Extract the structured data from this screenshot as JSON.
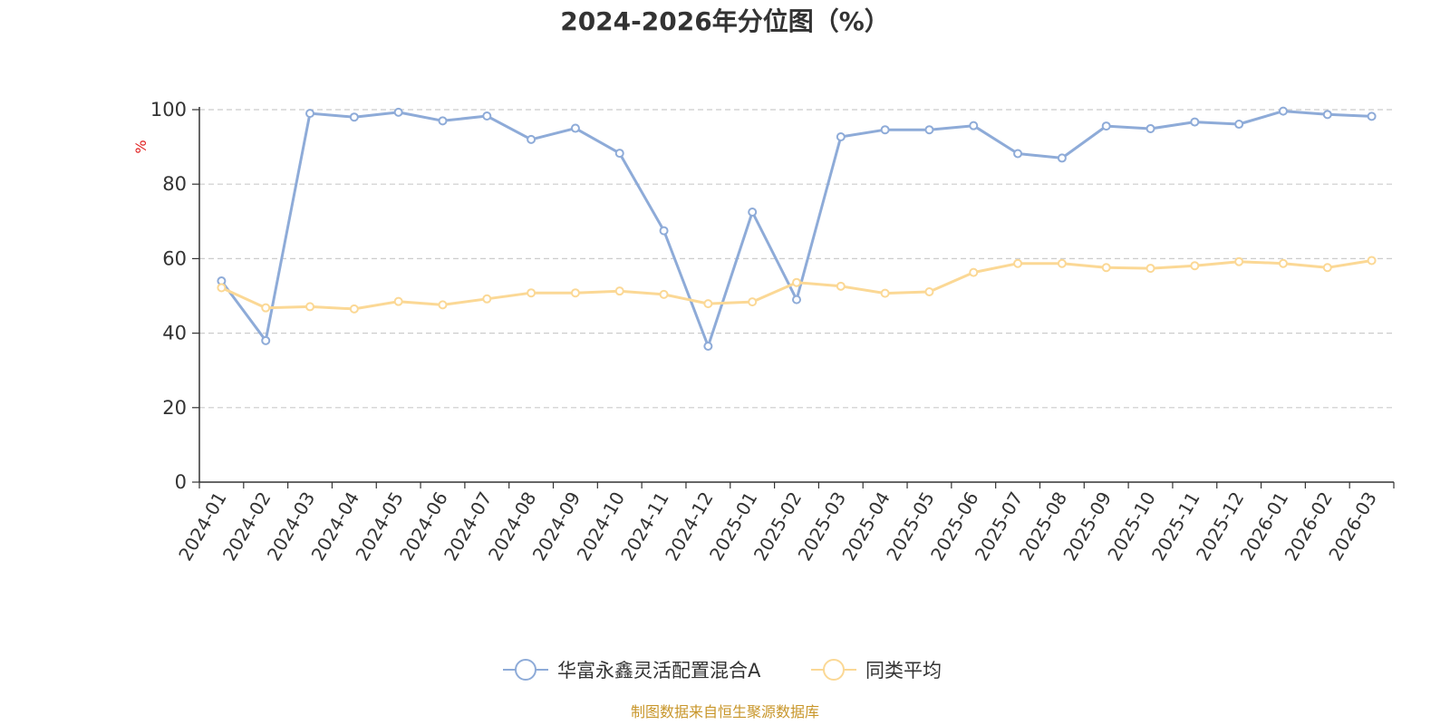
{
  "chart_data": {
    "type": "line",
    "title": "2024-2026年分位图（%）",
    "ylabel": "%",
    "ylim": [
      0,
      100
    ],
    "yticks": [
      0,
      20,
      40,
      60,
      80,
      100
    ],
    "grid": true,
    "legend_position": "bottom-center",
    "categories": [
      "2024-01",
      "2024-02",
      "2024-03",
      "2024-04",
      "2024-05",
      "2024-06",
      "2024-07",
      "2024-08",
      "2024-09",
      "2024-10",
      "2024-11",
      "2024-12",
      "2025-01",
      "2025-02",
      "2025-03",
      "2025-04",
      "2025-05",
      "2025-06",
      "2025-07",
      "2025-08",
      "2025-09",
      "2025-10",
      "2025-11",
      "2025-12",
      "2026-01",
      "2026-02",
      "2026-03"
    ],
    "series": [
      {
        "name": "华富永鑫灵活配置混合A",
        "color": "#8eabd8",
        "values": [
          54,
          38,
          99,
          98,
          99.3,
          97,
          98.3,
          92,
          95,
          88.3,
          67.5,
          36.5,
          72.5,
          49,
          92.7,
          94.6,
          94.6,
          95.7,
          88.2,
          87,
          95.6,
          94.9,
          96.7,
          96.1,
          99.6,
          98.7,
          98.2
        ]
      },
      {
        "name": "同类平均",
        "color": "#fbd895",
        "values": [
          52.2,
          46.8,
          47.1,
          46.5,
          48.5,
          47.6,
          49.2,
          50.8,
          50.8,
          51.3,
          50.4,
          47.9,
          48.4,
          53.6,
          52.6,
          50.7,
          51.1,
          56.3,
          58.7,
          58.7,
          57.6,
          57.4,
          58.1,
          59.2,
          58.7,
          57.6,
          59.5
        ]
      }
    ],
    "unit_color": "#e02020",
    "source_color": "#c8962a"
  },
  "footer": {
    "source": "制图数据来自恒生聚源数据库"
  }
}
